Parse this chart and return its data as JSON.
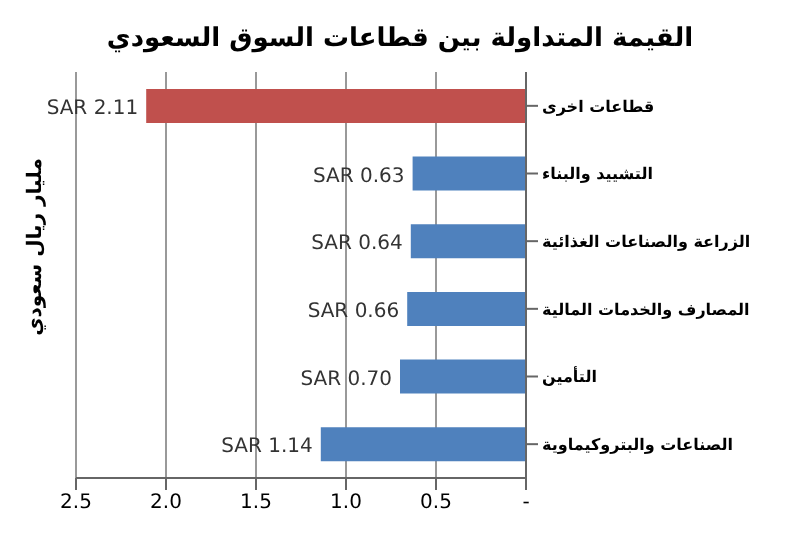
{
  "chart_data": {
    "type": "bar",
    "orientation": "horizontal",
    "title": "القيمة المتداولة بين قطاعات السوق السعودي",
    "ylabel": "مليار ريال سعودي",
    "categories": [
      "قطاعات اخرى",
      "التشييد والبناء",
      "الزراعة والصناعات الغذائية",
      "المصارف والخدمات المالية",
      "التأمين",
      "الصناعات والبتروكيماوية"
    ],
    "values": [
      2.11,
      0.63,
      0.64,
      0.66,
      0.7,
      1.14
    ],
    "colors": [
      "#c0504d",
      "#4f81bd",
      "#4f81bd",
      "#4f81bd",
      "#4f81bd",
      "#4f81bd"
    ],
    "value_labels": [
      "SAR 2.11",
      "SAR 0.63",
      "SAR 0.64",
      "SAR 0.66",
      "SAR 0.70",
      "SAR 1.14"
    ],
    "xlim": [
      2.5,
      0
    ],
    "xticks": [
      2.5,
      {
        "value": 2,
        "label": "2.0"
      },
      1.5,
      {
        "value": 1,
        "label": "1.0"
      },
      0.5,
      {
        "value": 0,
        "label": "-"
      }
    ],
    "grid": "x"
  }
}
